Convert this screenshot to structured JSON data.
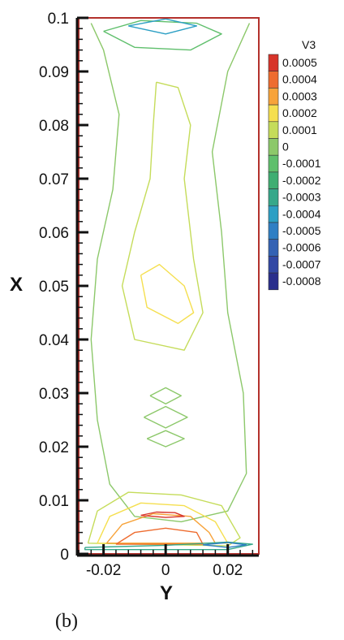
{
  "chart_data": {
    "type": "contour",
    "xlabel": "Y",
    "ylabel": "X",
    "xlim": [
      -0.028,
      0.03
    ],
    "ylim": [
      0,
      0.1
    ],
    "x_ticks": [
      "-0.02",
      "0",
      "0.02"
    ],
    "y_ticks": [
      "0",
      "0.01",
      "0.02",
      "0.03",
      "0.04",
      "0.05",
      "0.06",
      "0.07",
      "0.08",
      "0.09",
      "0.1"
    ],
    "legend_title": "V3",
    "legend_placement": "right",
    "contour_levels": [
      {
        "label": "0.0005",
        "value": 0.0005,
        "color": "#d7342a"
      },
      {
        "label": "0.0004",
        "value": 0.0004,
        "color": "#ee6c2f"
      },
      {
        "label": "0.0003",
        "value": 0.0003,
        "color": "#f7a33a"
      },
      {
        "label": "0.0002",
        "value": 0.0002,
        "color": "#f5df4f"
      },
      {
        "label": "0.0001",
        "value": 0.0001,
        "color": "#c5dc5a"
      },
      {
        "label": "0",
        "value": 0,
        "color": "#8cc86a"
      },
      {
        "label": "-0.0001",
        "value": -0.0001,
        "color": "#5fbf6c"
      },
      {
        "label": "-0.0002",
        "value": -0.0002,
        "color": "#3fae72"
      },
      {
        "label": "-0.0003",
        "value": -0.0003,
        "color": "#36a88a"
      },
      {
        "label": "-0.0004",
        "value": -0.0004,
        "color": "#2c9fc4"
      },
      {
        "label": "-0.0005",
        "value": -0.0005,
        "color": "#2f7fc4"
      },
      {
        "label": "-0.0006",
        "value": -0.0006,
        "color": "#3462b4"
      },
      {
        "label": "-0.0007",
        "value": -0.0007,
        "color": "#3248a4"
      },
      {
        "label": "-0.0008",
        "value": -0.0008,
        "color": "#2a2f8c"
      }
    ],
    "contours": [
      {
        "level": 0,
        "points": [
          [
            -0.024,
            0.099
          ],
          [
            -0.02,
            0.094
          ],
          [
            -0.015,
            0.082
          ],
          [
            -0.017,
            0.068
          ],
          [
            -0.022,
            0.055
          ],
          [
            -0.024,
            0.04
          ],
          [
            -0.022,
            0.025
          ],
          [
            -0.018,
            0.013
          ],
          [
            -0.01,
            0.007
          ],
          [
            0.005,
            0.006
          ],
          [
            0.02,
            0.008
          ],
          [
            0.026,
            0.015
          ],
          [
            0.025,
            0.03
          ],
          [
            0.02,
            0.045
          ],
          [
            0.018,
            0.06
          ],
          [
            0.015,
            0.075
          ],
          [
            0.02,
            0.09
          ],
          [
            0.027,
            0.099
          ]
        ]
      },
      {
        "level": 0.0001,
        "points": [
          [
            -0.003,
            0.088
          ],
          [
            0.004,
            0.087
          ],
          [
            0.008,
            0.08
          ],
          [
            0.006,
            0.07
          ],
          [
            0.009,
            0.055
          ],
          [
            0.012,
            0.045
          ],
          [
            0.006,
            0.038
          ],
          [
            -0.01,
            0.04
          ],
          [
            -0.014,
            0.05
          ],
          [
            -0.01,
            0.06
          ],
          [
            -0.005,
            0.07
          ],
          [
            -0.004,
            0.08
          ],
          [
            -0.003,
            0.088
          ]
        ]
      },
      {
        "level": 0.0002,
        "points": [
          [
            -0.008,
            0.052
          ],
          [
            -0.002,
            0.054
          ],
          [
            0.006,
            0.05
          ],
          [
            0.009,
            0.045
          ],
          [
            0.004,
            0.043
          ],
          [
            -0.006,
            0.046
          ],
          [
            -0.008,
            0.052
          ]
        ]
      },
      {
        "level": 0,
        "points": [
          [
            -0.005,
            0.0295
          ],
          [
            0,
            0.031
          ],
          [
            0.005,
            0.0295
          ],
          [
            0,
            0.028
          ],
          [
            -0.005,
            0.0295
          ]
        ]
      },
      {
        "level": 0,
        "points": [
          [
            -0.007,
            0.0255
          ],
          [
            0,
            0.0275
          ],
          [
            0.007,
            0.0255
          ],
          [
            0,
            0.0235
          ],
          [
            -0.007,
            0.0255
          ]
        ]
      },
      {
        "level": 0,
        "points": [
          [
            -0.006,
            0.0215
          ],
          [
            0,
            0.023
          ],
          [
            0.006,
            0.0215
          ],
          [
            0,
            0.02
          ],
          [
            -0.006,
            0.0215
          ]
        ]
      },
      {
        "level": -0.0001,
        "points": [
          [
            -0.02,
            0.0975
          ],
          [
            -0.008,
            0.0995
          ],
          [
            0.01,
            0.099
          ],
          [
            0.018,
            0.097
          ],
          [
            0.008,
            0.094
          ],
          [
            -0.01,
            0.0945
          ],
          [
            -0.02,
            0.0975
          ]
        ]
      },
      {
        "level": -0.0004,
        "points": [
          [
            -0.012,
            0.0985
          ],
          [
            0,
            0.0998
          ],
          [
            0.01,
            0.0985
          ],
          [
            0,
            0.097
          ],
          [
            -0.012,
            0.0985
          ]
        ]
      },
      {
        "level": 0.0001,
        "points": [
          [
            -0.025,
            0.002
          ],
          [
            -0.022,
            0.008
          ],
          [
            -0.012,
            0.0115
          ],
          [
            0.005,
            0.011
          ],
          [
            0.018,
            0.009
          ],
          [
            0.024,
            0.003
          ],
          [
            0.02,
            0.0015
          ],
          [
            -0.025,
            0.002
          ]
        ]
      },
      {
        "level": 0.0002,
        "points": [
          [
            -0.022,
            0.002
          ],
          [
            -0.018,
            0.007
          ],
          [
            -0.008,
            0.0095
          ],
          [
            0.006,
            0.009
          ],
          [
            0.016,
            0.006
          ],
          [
            0.02,
            0.002
          ],
          [
            -0.022,
            0.002
          ]
        ]
      },
      {
        "level": 0.0003,
        "points": [
          [
            -0.019,
            0.002
          ],
          [
            -0.014,
            0.0055
          ],
          [
            -0.004,
            0.0075
          ],
          [
            0.008,
            0.007
          ],
          [
            0.014,
            0.004
          ],
          [
            0.016,
            0.002
          ],
          [
            -0.019,
            0.002
          ]
        ]
      },
      {
        "level": 0.0004,
        "points": [
          [
            -0.016,
            0.0018
          ],
          [
            -0.01,
            0.004
          ],
          [
            0,
            0.0048
          ],
          [
            0.01,
            0.004
          ],
          [
            0.012,
            0.0018
          ],
          [
            -0.016,
            0.0018
          ]
        ]
      },
      {
        "level": 0.0005,
        "points": [
          [
            -0.008,
            0.0072
          ],
          [
            -0.003,
            0.0078
          ],
          [
            0.003,
            0.0077
          ],
          [
            0.006,
            0.007
          ],
          [
            0,
            0.0068
          ],
          [
            -0.008,
            0.0072
          ]
        ]
      },
      {
        "level": -0.0003,
        "points": [
          [
            -0.026,
            0.0012
          ],
          [
            0,
            0.0016
          ],
          [
            0.02,
            0.0022
          ],
          [
            0.028,
            0.0018
          ],
          [
            0.02,
            0.0008
          ],
          [
            -0.026,
            0.0008
          ],
          [
            -0.026,
            0.0012
          ]
        ]
      },
      {
        "level": -0.0005,
        "points": [
          [
            0.012,
            0.0017
          ],
          [
            0.02,
            0.0021
          ],
          [
            0.026,
            0.0017
          ],
          [
            0.02,
            0.0012
          ],
          [
            0.012,
            0.0017
          ]
        ]
      }
    ]
  },
  "caption": "(b)"
}
